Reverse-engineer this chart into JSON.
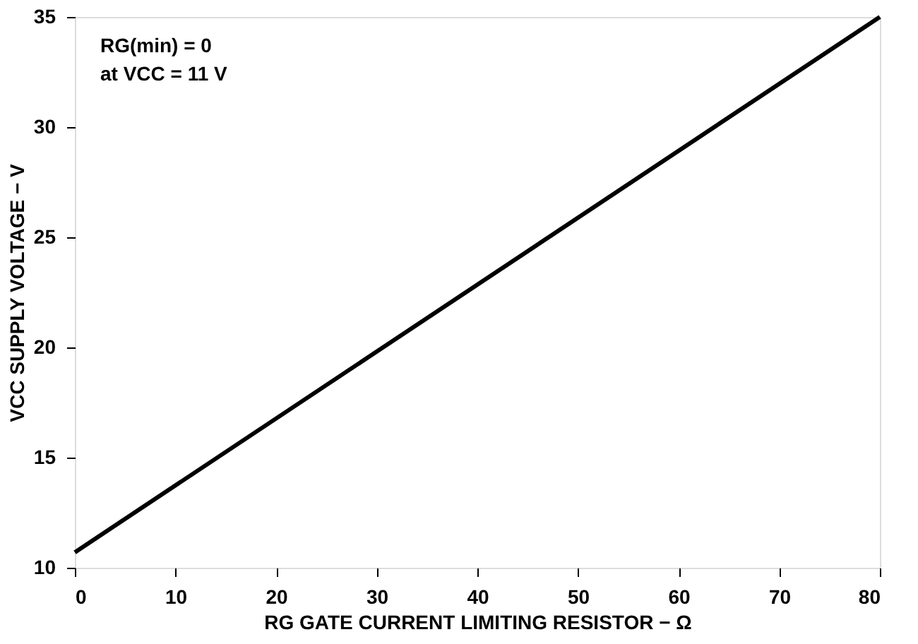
{
  "chart_data": {
    "type": "line",
    "xlabel": "RG GATE CURRENT LIMITING RESISTOR − Ω",
    "ylabel": "VCC SUPPLY VOLTAGE − V",
    "annotations": [
      "RG(min) = 0",
      "at VCC = 11 V"
    ],
    "series": [
      {
        "color": "#000000",
        "x": [
          0,
          80
        ],
        "values": [
          10.7,
          35
        ]
      }
    ],
    "xlim": [
      0,
      80
    ],
    "xticks": [
      0,
      10,
      20,
      30,
      40,
      50,
      60,
      70,
      80
    ],
    "ylim": [
      10,
      35
    ],
    "yticks": [
      10,
      15,
      20,
      25,
      30,
      35
    ],
    "grid": false,
    "marker": "none",
    "line_style": "solid"
  }
}
